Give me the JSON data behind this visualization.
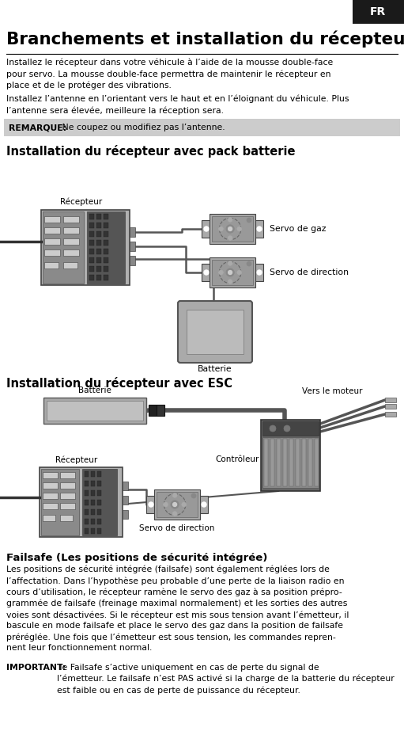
{
  "bg_color": "#ffffff",
  "tab_color": "#1a1a1a",
  "tab_text": "FR",
  "tab_text_color": "#ffffff",
  "title": "Branchements et installation du récepteur",
  "title_color": "#000000",
  "body_text_1": "Installez le récepteur dans votre véhicule à l’aide de la mousse double-face\npour servo. La mousse double-face permettra de maintenir le récepteur en\nplace et de le protéger des vibrations.",
  "body_text_2": "Installez l’antenne en l’orientant vers le haut et en l’éloignant du véhicule. Plus\nl’antenne sera élevée, meilleure la réception sera.",
  "remarque_bg": "#cccccc",
  "remarque_bold": "REMARQUE:",
  "remarque_text": " Ne coupez ou modifiez pas l’antenne.",
  "section1_title": "Installation du récepteur avec pack batterie",
  "section2_title": "Installation du récepteur avec ESC",
  "label_recepteur": "Récepteur",
  "label_servo_gaz": "Servo de gaz",
  "label_servo_direction": "Servo de direction",
  "label_batterie": "Batterie",
  "label_controleur": "Contrôleur",
  "label_vers_moteur": "Vers le moteur",
  "failsafe_title": "Failsafe (Les positions de sécurité intégrée)",
  "failsafe_text": "Les positions de sécurité intégrée (failsafe) sont également réglées lors de\nl’affectation. Dans l’hypothèse peu probable d’une perte de la liaison radio en\ncours d’utilisation, le récepteur ramène le servo des gaz à sa position prépro-\ngrammée de failsafe (freinage maximal normalement) et les sorties des autres\nvoies sont désactivées. Si le récepteur est mis sous tension avant l’émetteur, il\nbascule en mode failsafe et place le servo des gaz dans la position de failsafe\npréréglée. Une fois que l’émetteur est sous tension, les commandes repren-\nnent leur fonctionnement normal.",
  "important_bold": "IMPORTANT:",
  "important_text": " le Failsafe s’active uniquement en cas de perte du signal de\nl’émetteur. Le failsafe n’est PAS activé si la charge de la batterie du récepteur\nest faible ou en cas de perte de puissance du récepteur.",
  "gray_dark": "#444444",
  "gray_med": "#777777",
  "gray_light": "#aaaaaa",
  "gray_lightest": "#cccccc",
  "wire_color": "#555555"
}
